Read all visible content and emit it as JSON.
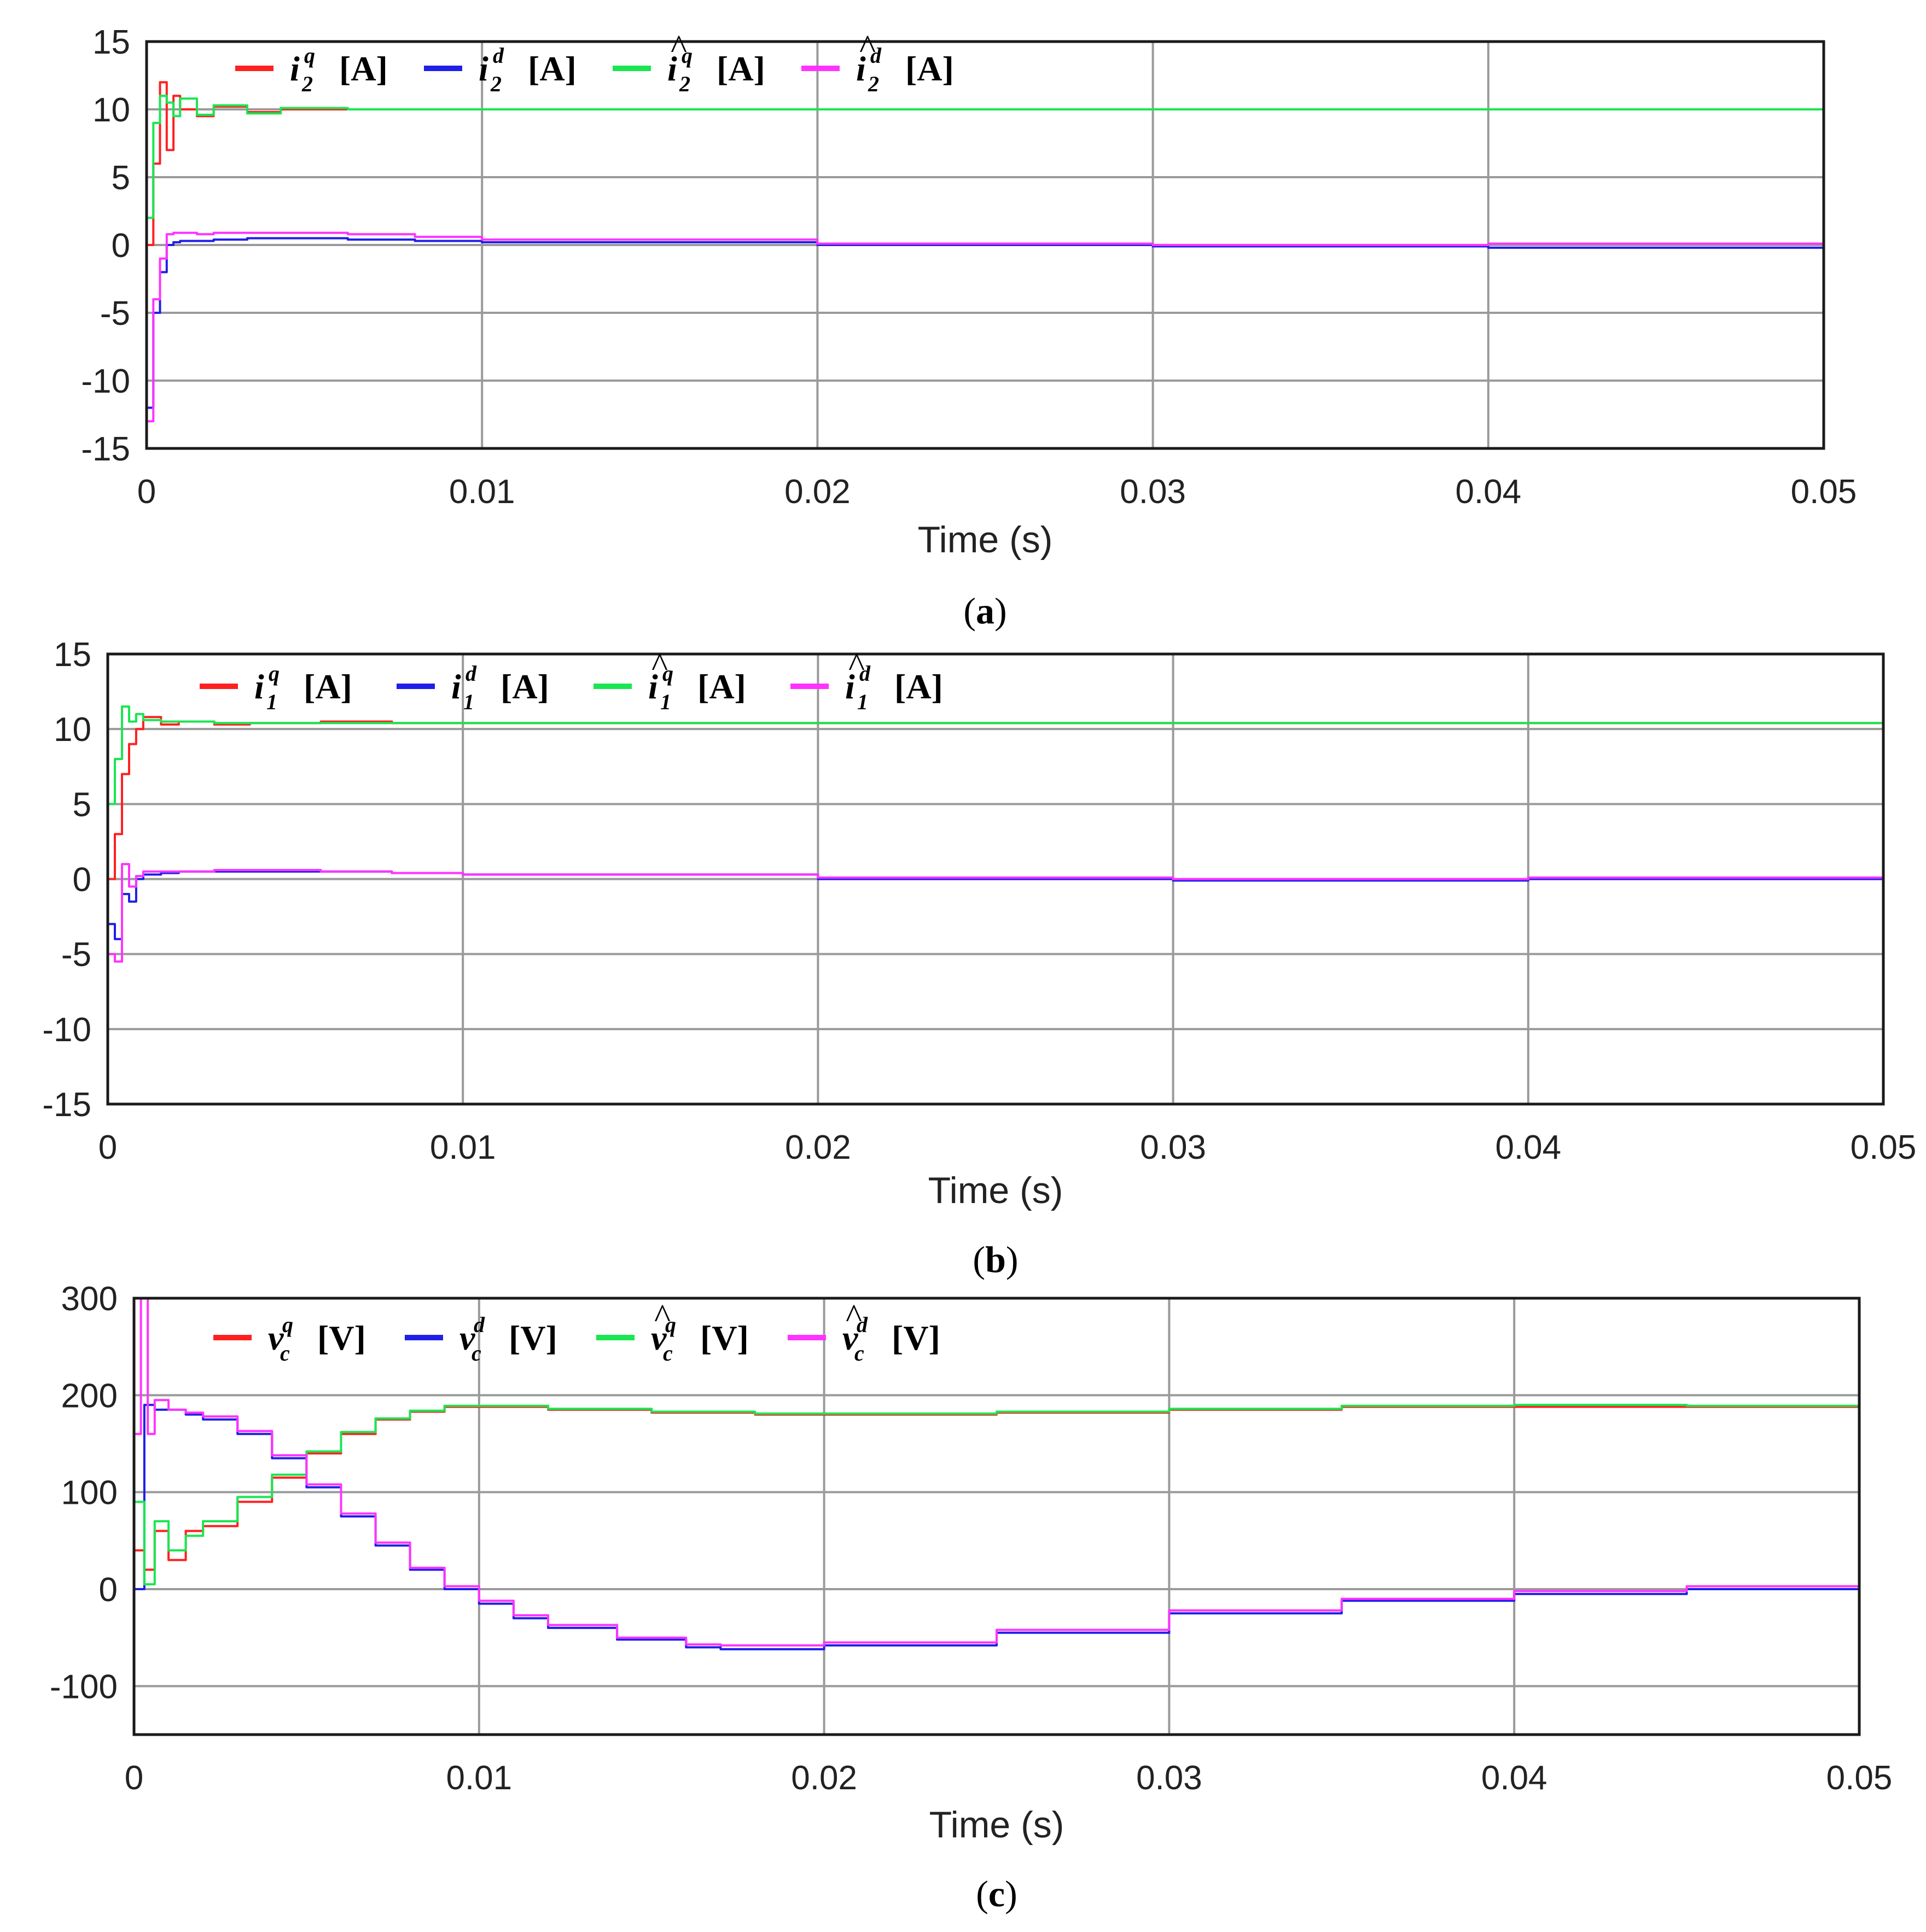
{
  "chart_data": [
    {
      "id": "a",
      "type": "line",
      "caption": "a",
      "xlabel": "Time (s)",
      "xlim": [
        0,
        0.05
      ],
      "ylim": [
        -15,
        15
      ],
      "xticks": [
        "0",
        "0.01",
        "0.02",
        "0.03",
        "0.04",
        "0.05"
      ],
      "yticks": [
        "15",
        "10",
        "5",
        "0",
        "-5",
        "-10",
        "-15"
      ],
      "grid": true,
      "legend_position": "top-left",
      "series": [
        {
          "name": "i2q",
          "symbol": "i",
          "hat": false,
          "sub": "2",
          "sup": "q",
          "unit": "[A]",
          "color": "#ff2020",
          "x": [
            0,
            0.0002,
            0.0004,
            0.0006,
            0.0008,
            0.001,
            0.0015,
            0.002,
            0.003,
            0.004,
            0.006,
            0.008,
            0.01,
            0.02,
            0.03,
            0.04,
            0.05
          ],
          "y": [
            0,
            6,
            12,
            7,
            11,
            10,
            9.5,
            10.2,
            9.8,
            10,
            10,
            10,
            10,
            10,
            10,
            10,
            10
          ]
        },
        {
          "name": "i2d",
          "symbol": "i",
          "hat": false,
          "sub": "2",
          "sup": "d",
          "unit": "[A]",
          "color": "#1f1fe8",
          "x": [
            0,
            0.0002,
            0.0004,
            0.0006,
            0.0008,
            0.001,
            0.0015,
            0.002,
            0.003,
            0.004,
            0.006,
            0.008,
            0.01,
            0.02,
            0.03,
            0.04,
            0.05
          ],
          "y": [
            -12,
            -5,
            -2,
            0,
            0.2,
            0.3,
            0.3,
            0.4,
            0.5,
            0.5,
            0.4,
            0.3,
            0.2,
            0,
            -0.1,
            -0.2,
            -0.3
          ]
        },
        {
          "name": "i2q_hat",
          "symbol": "i",
          "hat": true,
          "sub": "2",
          "sup": "q",
          "unit": "[A]",
          "color": "#19e650",
          "x": [
            0,
            0.0002,
            0.0004,
            0.0006,
            0.0008,
            0.001,
            0.0015,
            0.002,
            0.003,
            0.004,
            0.006,
            0.008,
            0.01,
            0.02,
            0.03,
            0.04,
            0.05
          ],
          "y": [
            2,
            9,
            11,
            10.5,
            9.5,
            10.8,
            9.6,
            10.3,
            9.7,
            10.1,
            10,
            10,
            10,
            10,
            10,
            10,
            10
          ]
        },
        {
          "name": "i2d_hat",
          "symbol": "i",
          "hat": true,
          "sub": "2",
          "sup": "d",
          "unit": "[A]",
          "color": "#ff33ff",
          "x": [
            0,
            0.0002,
            0.0004,
            0.0006,
            0.0008,
            0.001,
            0.0015,
            0.002,
            0.003,
            0.004,
            0.006,
            0.008,
            0.01,
            0.02,
            0.03,
            0.04,
            0.05
          ],
          "y": [
            -13,
            -4,
            -1,
            0.8,
            0.9,
            0.9,
            0.8,
            0.9,
            0.9,
            0.9,
            0.8,
            0.6,
            0.4,
            0.1,
            0,
            0.1,
            0.2
          ]
        }
      ]
    },
    {
      "id": "b",
      "type": "line",
      "caption": "b",
      "xlabel": "Time (s)",
      "xlim": [
        0,
        0.05
      ],
      "ylim": [
        -15,
        15
      ],
      "xticks": [
        "0",
        "0.01",
        "0.02",
        "0.03",
        "0.04",
        "0.05"
      ],
      "yticks": [
        "15",
        "10",
        "5",
        "0",
        "-5",
        "-10",
        "-15"
      ],
      "grid": true,
      "legend_position": "top-left",
      "series": [
        {
          "name": "i1q",
          "symbol": "i",
          "hat": false,
          "sub": "1",
          "sup": "q",
          "unit": "[A]",
          "color": "#ff2020",
          "x": [
            0,
            0.0002,
            0.0004,
            0.0006,
            0.0008,
            0.001,
            0.0015,
            0.002,
            0.003,
            0.004,
            0.006,
            0.008,
            0.01,
            0.02,
            0.03,
            0.04,
            0.05
          ],
          "y": [
            0,
            3,
            7,
            9,
            10,
            10.8,
            10.3,
            10.5,
            10.3,
            10.4,
            10.5,
            10.4,
            10.4,
            10.4,
            10.4,
            10.4,
            10.5
          ]
        },
        {
          "name": "i1d",
          "symbol": "i",
          "hat": false,
          "sub": "1",
          "sup": "d",
          "unit": "[A]",
          "color": "#1f1fe8",
          "x": [
            0,
            0.0002,
            0.0004,
            0.0006,
            0.0008,
            0.001,
            0.0015,
            0.002,
            0.003,
            0.004,
            0.006,
            0.008,
            0.01,
            0.02,
            0.03,
            0.04,
            0.05
          ],
          "y": [
            -3,
            -4,
            -1,
            -1.5,
            0,
            0.3,
            0.4,
            0.5,
            0.5,
            0.5,
            0.5,
            0.4,
            0.3,
            0,
            -0.1,
            0,
            0
          ]
        },
        {
          "name": "i1q_hat",
          "symbol": "i",
          "hat": true,
          "sub": "1",
          "sup": "q",
          "unit": "[A]",
          "color": "#19e650",
          "x": [
            0,
            0.0002,
            0.0004,
            0.0006,
            0.0008,
            0.001,
            0.0015,
            0.002,
            0.003,
            0.004,
            0.006,
            0.008,
            0.01,
            0.02,
            0.03,
            0.04,
            0.05
          ],
          "y": [
            5,
            8,
            11.5,
            10.5,
            11,
            10.6,
            10.5,
            10.5,
            10.4,
            10.4,
            10.4,
            10.4,
            10.4,
            10.4,
            10.4,
            10.4,
            10.4
          ]
        },
        {
          "name": "i1d_hat",
          "symbol": "i",
          "hat": true,
          "sub": "1",
          "sup": "d",
          "unit": "[A]",
          "color": "#ff33ff",
          "x": [
            0,
            0.0002,
            0.0004,
            0.0006,
            0.0008,
            0.001,
            0.0015,
            0.002,
            0.003,
            0.004,
            0.006,
            0.008,
            0.01,
            0.02,
            0.03,
            0.04,
            0.05
          ],
          "y": [
            -5,
            -5.5,
            1,
            -0.5,
            0.2,
            0.5,
            0.5,
            0.5,
            0.6,
            0.6,
            0.5,
            0.4,
            0.3,
            0.1,
            0,
            0.1,
            0.1
          ]
        }
      ]
    },
    {
      "id": "c",
      "type": "line",
      "caption": "c",
      "xlabel": "Time (s)",
      "xlim": [
        0,
        0.05
      ],
      "ylim": [
        -150,
        300
      ],
      "xticks": [
        "0",
        "0.01",
        "0.02",
        "0.03",
        "0.04",
        "0.05"
      ],
      "yticks": [
        "300",
        "200",
        "100",
        "0",
        "-100"
      ],
      "ytick_values": [
        300,
        200,
        100,
        0,
        -100
      ],
      "grid": true,
      "legend_position": "top-left",
      "series": [
        {
          "name": "vcq",
          "symbol": "v",
          "hat": false,
          "sub": "c",
          "sup": "q",
          "unit": "[V]",
          "color": "#ff2020",
          "x": [
            0,
            0.0003,
            0.0006,
            0.001,
            0.0015,
            0.002,
            0.003,
            0.004,
            0.005,
            0.006,
            0.007,
            0.008,
            0.009,
            0.01,
            0.012,
            0.015,
            0.018,
            0.02,
            0.025,
            0.03,
            0.035,
            0.04,
            0.045,
            0.05
          ],
          "y": [
            40,
            20,
            60,
            30,
            60,
            65,
            90,
            115,
            140,
            160,
            175,
            183,
            188,
            188,
            185,
            182,
            180,
            180,
            182,
            185,
            188,
            188,
            188,
            188
          ]
        },
        {
          "name": "vcd",
          "symbol": "v",
          "hat": false,
          "sub": "c",
          "sup": "d",
          "unit": "[V]",
          "color": "#1f1fe8",
          "x": [
            0,
            0.0003,
            0.0006,
            0.001,
            0.0015,
            0.002,
            0.003,
            0.004,
            0.005,
            0.006,
            0.007,
            0.008,
            0.009,
            0.01,
            0.011,
            0.012,
            0.014,
            0.016,
            0.017,
            0.02,
            0.025,
            0.03,
            0.035,
            0.04,
            0.045,
            0.05
          ],
          "y": [
            0,
            190,
            185,
            185,
            180,
            175,
            160,
            135,
            105,
            75,
            45,
            20,
            0,
            -15,
            -30,
            -40,
            -52,
            -60,
            -62,
            -58,
            -45,
            -25,
            -12,
            -5,
            0,
            0
          ]
        },
        {
          "name": "vcq_hat",
          "symbol": "v",
          "hat": true,
          "sub": "c",
          "sup": "q",
          "unit": "[V]",
          "color": "#19e650",
          "x": [
            0,
            0.0003,
            0.0006,
            0.001,
            0.0015,
            0.002,
            0.003,
            0.004,
            0.005,
            0.006,
            0.007,
            0.008,
            0.009,
            0.01,
            0.012,
            0.015,
            0.018,
            0.02,
            0.025,
            0.03,
            0.035,
            0.04,
            0.045,
            0.05
          ],
          "y": [
            90,
            5,
            70,
            40,
            55,
            70,
            95,
            118,
            142,
            162,
            176,
            184,
            189,
            189,
            186,
            183,
            181,
            181,
            183,
            186,
            189,
            190,
            189,
            189
          ]
        },
        {
          "name": "vcd_hat",
          "symbol": "v",
          "hat": true,
          "sub": "c",
          "sup": "d",
          "unit": "[V]",
          "color": "#ff33ff",
          "x": [
            0,
            0.0002,
            0.0004,
            0.0006,
            0.001,
            0.0015,
            0.002,
            0.003,
            0.004,
            0.005,
            0.006,
            0.007,
            0.008,
            0.009,
            0.01,
            0.011,
            0.012,
            0.014,
            0.016,
            0.017,
            0.02,
            0.025,
            0.03,
            0.035,
            0.04,
            0.045,
            0.05
          ],
          "y": [
            160,
            300,
            160,
            195,
            185,
            182,
            178,
            163,
            138,
            108,
            78,
            48,
            22,
            3,
            -12,
            -27,
            -37,
            -50,
            -57,
            -58,
            -55,
            -42,
            -22,
            -10,
            -2,
            3,
            5
          ]
        }
      ]
    }
  ]
}
